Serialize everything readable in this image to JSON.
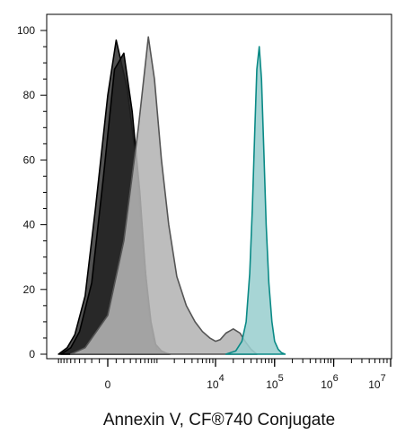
{
  "chart_data": {
    "type": "area",
    "title": "",
    "xlabel": "Annexin V, CF®740 Conjugate",
    "ylabel": "",
    "x_scale": "biexponential",
    "ylim": [
      0,
      100
    ],
    "yticks": [
      "0",
      "20",
      "40",
      "60",
      "80",
      "100"
    ],
    "xticks": [
      {
        "base": "0",
        "exp": ""
      },
      {
        "base": "10",
        "exp": "4"
      },
      {
        "base": "10",
        "exp": "5"
      },
      {
        "base": "10",
        "exp": "6"
      },
      {
        "base": "10",
        "exp": "7"
      }
    ],
    "grid": false,
    "legend": "none",
    "series": [
      {
        "color": "#3a3a3a",
        "stroke": "#000000",
        "x": [
          -1000,
          -700,
          -500,
          -300,
          -150,
          0,
          100,
          250,
          400,
          550,
          700,
          850,
          1000,
          1300,
          1700
        ],
        "y": [
          0,
          2,
          6,
          18,
          45,
          80,
          97,
          82,
          60,
          35,
          15,
          5,
          1.5,
          0.5,
          0
        ]
      },
      {
        "color": "#222222",
        "stroke": "#000000",
        "x": [
          -900,
          -600,
          -400,
          -200,
          -50,
          80,
          200,
          330,
          480,
          620,
          780,
          950,
          1200,
          1600
        ],
        "y": [
          0,
          2,
          7,
          22,
          55,
          88,
          93,
          75,
          50,
          25,
          10,
          3,
          1,
          0
        ]
      },
      {
        "color": "#b4b4b4",
        "stroke": "#555555",
        "x": [
          -600,
          -300,
          0,
          200,
          450,
          700,
          900,
          1200,
          1600,
          2200,
          3200,
          4500,
          6000,
          8000,
          10000,
          12000,
          15000,
          20000,
          26000,
          33000,
          40000,
          50000
        ],
        "y": [
          0,
          2,
          12,
          35,
          70,
          98,
          85,
          60,
          40,
          24,
          15,
          10,
          7,
          5,
          4,
          4.5,
          6.5,
          7.8,
          6.5,
          3.5,
          1.5,
          0
        ]
      },
      {
        "color": "#9bcfcf",
        "stroke": "#0a8a86",
        "x": [
          15000,
          22000,
          28000,
          33000,
          38000,
          42000,
          46000,
          50000,
          55000,
          60000,
          66000,
          72000,
          80000,
          90000,
          100000,
          115000,
          130000,
          150000
        ],
        "y": [
          0,
          1,
          4,
          10,
          25,
          45,
          68,
          88,
          95,
          85,
          62,
          40,
          22,
          10,
          4,
          1.5,
          0.5,
          0
        ]
      }
    ]
  }
}
